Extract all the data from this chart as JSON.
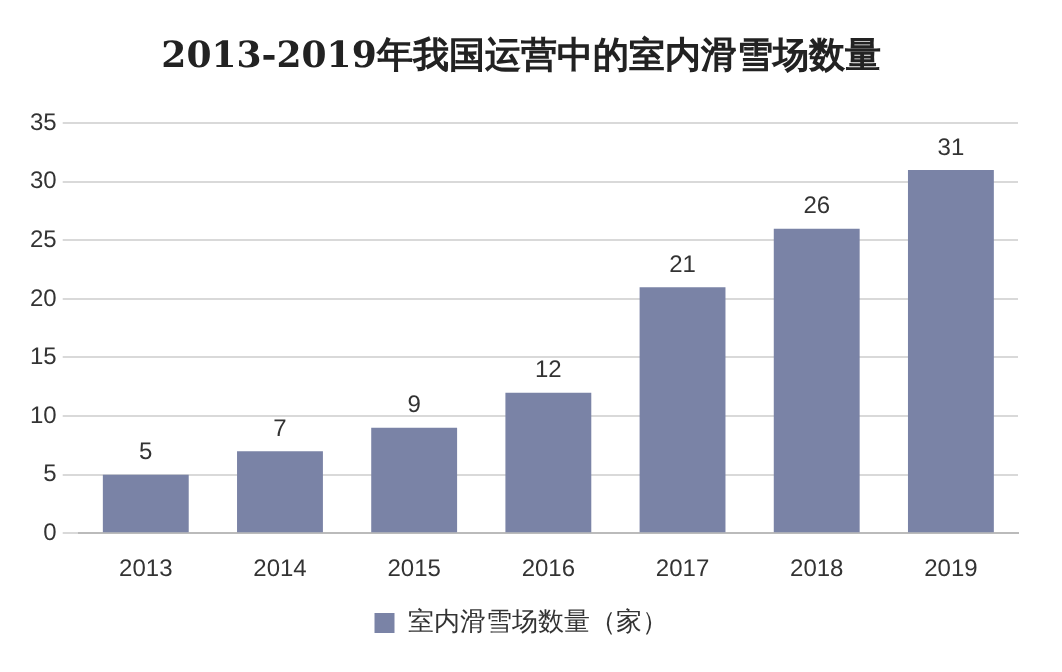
{
  "chart_data": {
    "type": "bar",
    "title": "2013-2019年我国运营中的室内滑雪场数量",
    "categories": [
      "2013",
      "2014",
      "2015",
      "2016",
      "2017",
      "2018",
      "2019"
    ],
    "series": [
      {
        "name": "室内滑雪场数量（家）",
        "color": "#7a83a6",
        "values": [
          5,
          7,
          9,
          12,
          21,
          26,
          31
        ]
      }
    ],
    "ylim": [
      0,
      35
    ],
    "yticks": [
      0,
      5,
      10,
      15,
      20,
      25,
      30,
      35
    ],
    "grid": "y",
    "legend": "bottom",
    "data_labels": true
  }
}
